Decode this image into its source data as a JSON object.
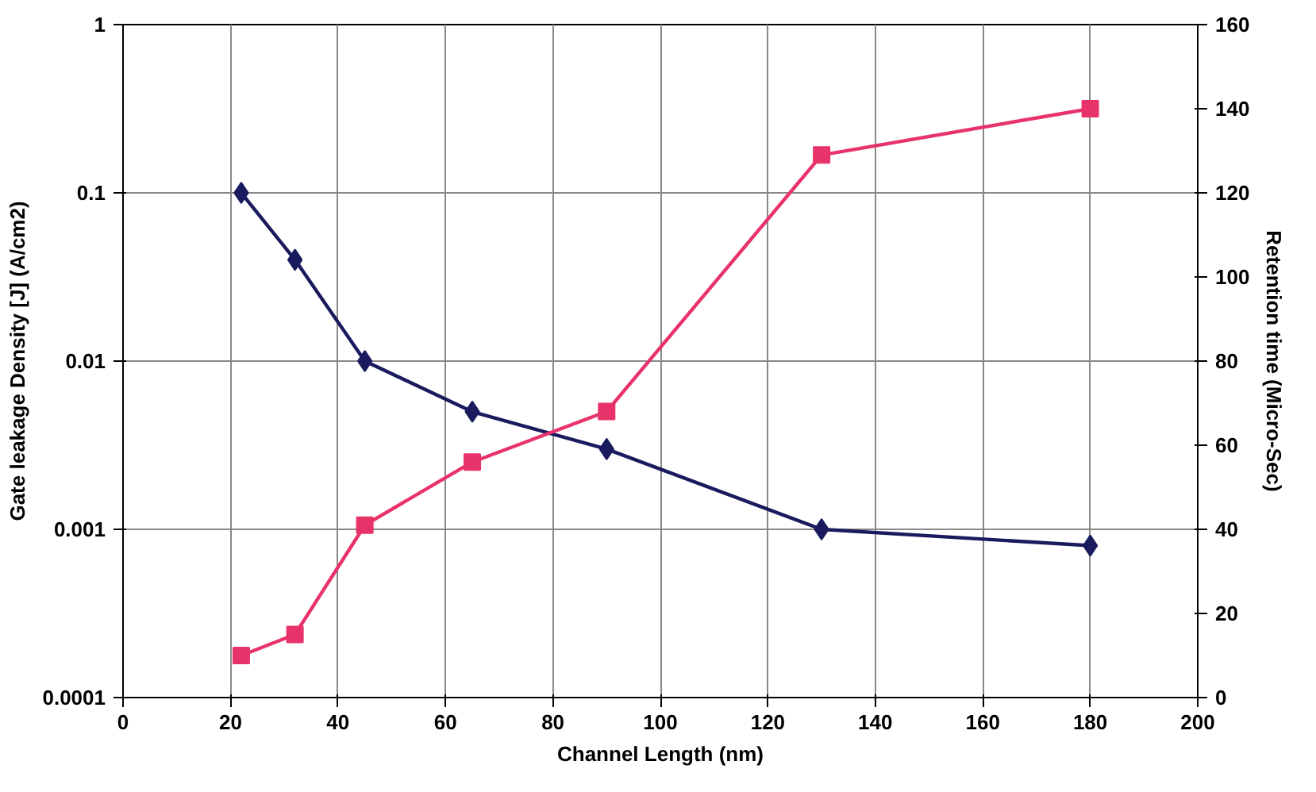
{
  "chart_data": {
    "type": "line",
    "xlabel": "Channel Length (nm)",
    "ylabel": "Gate leakage Density [J] (A/cm2)",
    "y2label": "Retention time (Micro-Sec)",
    "x": [
      22,
      32,
      45,
      65,
      90,
      130,
      180
    ],
    "series": [
      {
        "color": "#1a1a5e",
        "marker": "diamond",
        "values": [
          0.1,
          0.04,
          0.01,
          0.005,
          0.003,
          0.001,
          0.0008
        ]
      },
      {
        "color": "#e8336a",
        "marker": "square",
        "axis": "y2",
        "values": [
          10,
          15,
          41,
          56,
          68,
          129,
          140
        ]
      }
    ],
    "log": "y",
    "grid": true,
    "xlim": [
      0,
      200
    ],
    "xticks": [
      0,
      20,
      40,
      60,
      80,
      100,
      120,
      140,
      160,
      180,
      200
    ],
    "ylim": [
      0.0001,
      1
    ],
    "yticks": [
      0.0001,
      0.001,
      0.01,
      0.1,
      1
    ],
    "y2lim": [
      0,
      160
    ],
    "y2ticks": [
      0,
      20,
      40,
      60,
      80,
      100,
      120,
      140,
      160
    ]
  }
}
